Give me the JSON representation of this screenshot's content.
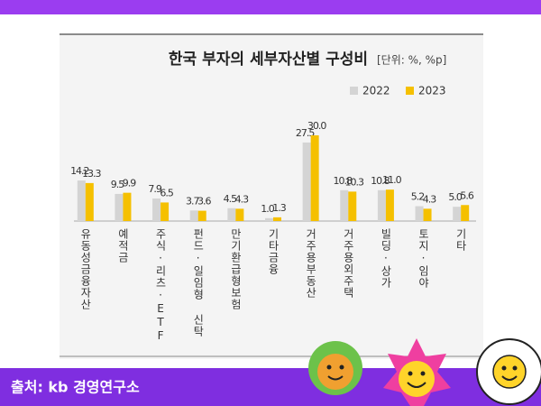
{
  "chart_data": {
    "type": "bar",
    "title": "한국 부자의 세부자산별 구성비",
    "unit": "[단위: %, %p]",
    "categories": [
      "유동성금융자산",
      "예적금",
      "주식·리츠·ETF",
      "펀드·일임형 신탁",
      "만기환급형보험",
      "기타금융",
      "거주용부동산",
      "거주용외주택",
      "빌딩·상가",
      "토지·임야",
      "기타"
    ],
    "series": [
      {
        "name": "2022",
        "color": "#d4d4d4",
        "values": [
          14.2,
          9.5,
          7.9,
          3.7,
          4.5,
          1.0,
          27.5,
          10.8,
          10.8,
          5.2,
          5.0
        ],
        "value_labels": [
          "14.2",
          "9.5",
          "7.9",
          "3.7",
          "4.5",
          "1.0",
          "27.5",
          "10.8",
          "10.8",
          "5.2",
          "5.0"
        ]
      },
      {
        "name": "2023",
        "color": "#f5c000",
        "values": [
          13.3,
          9.9,
          6.5,
          3.6,
          4.3,
          1.3,
          30.0,
          10.3,
          11.0,
          4.3,
          5.6
        ],
        "value_labels": [
          "13.3",
          "9.9",
          "6.5",
          "3.6",
          "4.3",
          "1.3",
          "30.0",
          "10.3",
          "11.0",
          "4.3",
          "5.6"
        ]
      }
    ],
    "source": "출처: kb 경영연구소"
  }
}
